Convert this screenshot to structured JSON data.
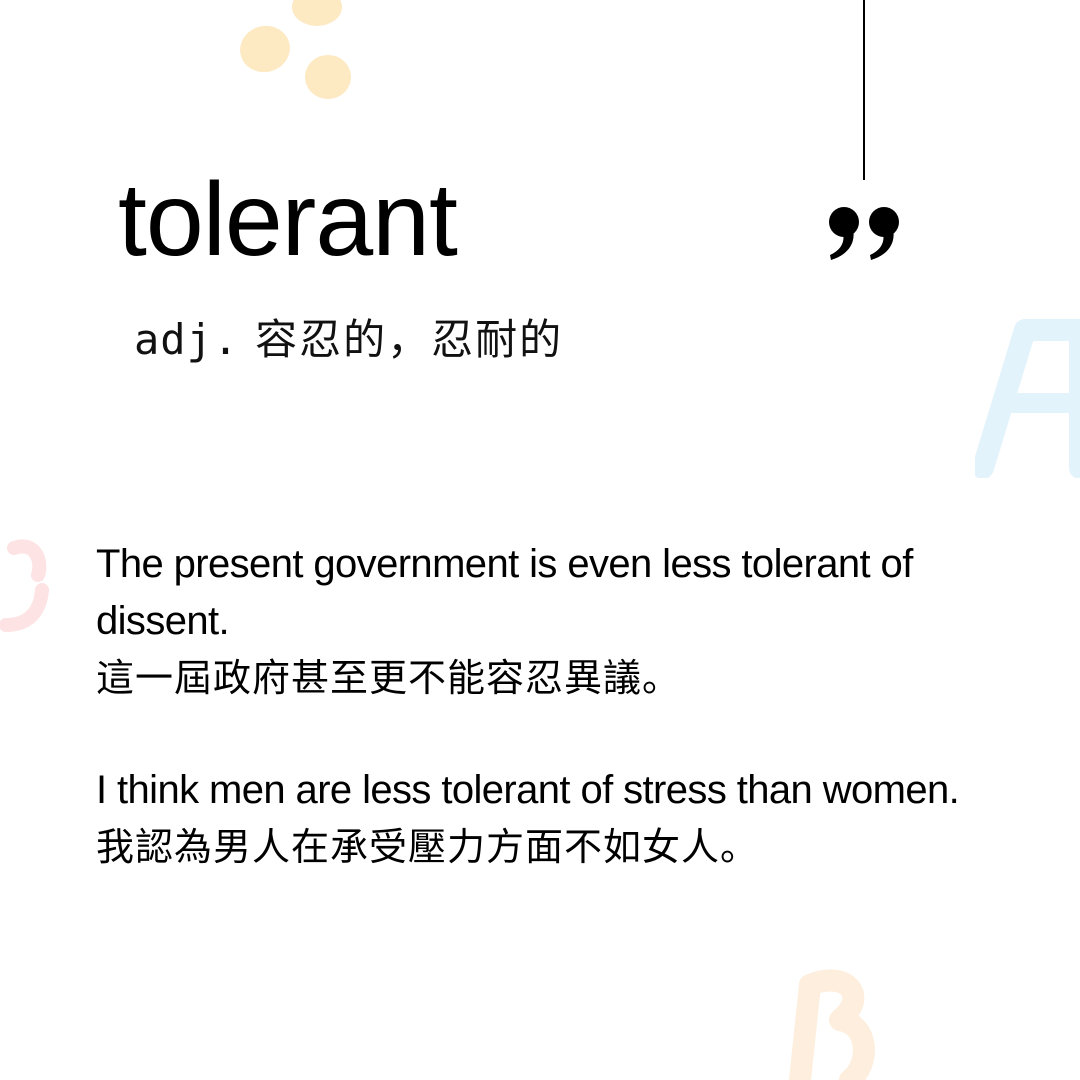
{
  "word": "tolerant",
  "definition": {
    "part_of_speech": "adj.",
    "meaning": "容忍的，忍耐的"
  },
  "examples": [
    {
      "english": "The present government is even less tolerant of dissent.",
      "chinese": "這一屆政府甚至更不能容忍異議。"
    },
    {
      "english": "I think men are less tolerant of stress than women.",
      "chinese": "我認為男人在承受壓力方面不如女人。"
    }
  ],
  "colors": {
    "text": "#000000",
    "dots": "#fde9c2",
    "letter_a": "#e3f3fb",
    "letter_c": "#fde3e3",
    "letter_b": "#fdeedd"
  },
  "icons": {
    "quote": "closing-quote-icon",
    "letter_a": "letter-a-decoration",
    "letter_b": "letter-b-decoration",
    "letter_c": "letter-c-decoration"
  }
}
